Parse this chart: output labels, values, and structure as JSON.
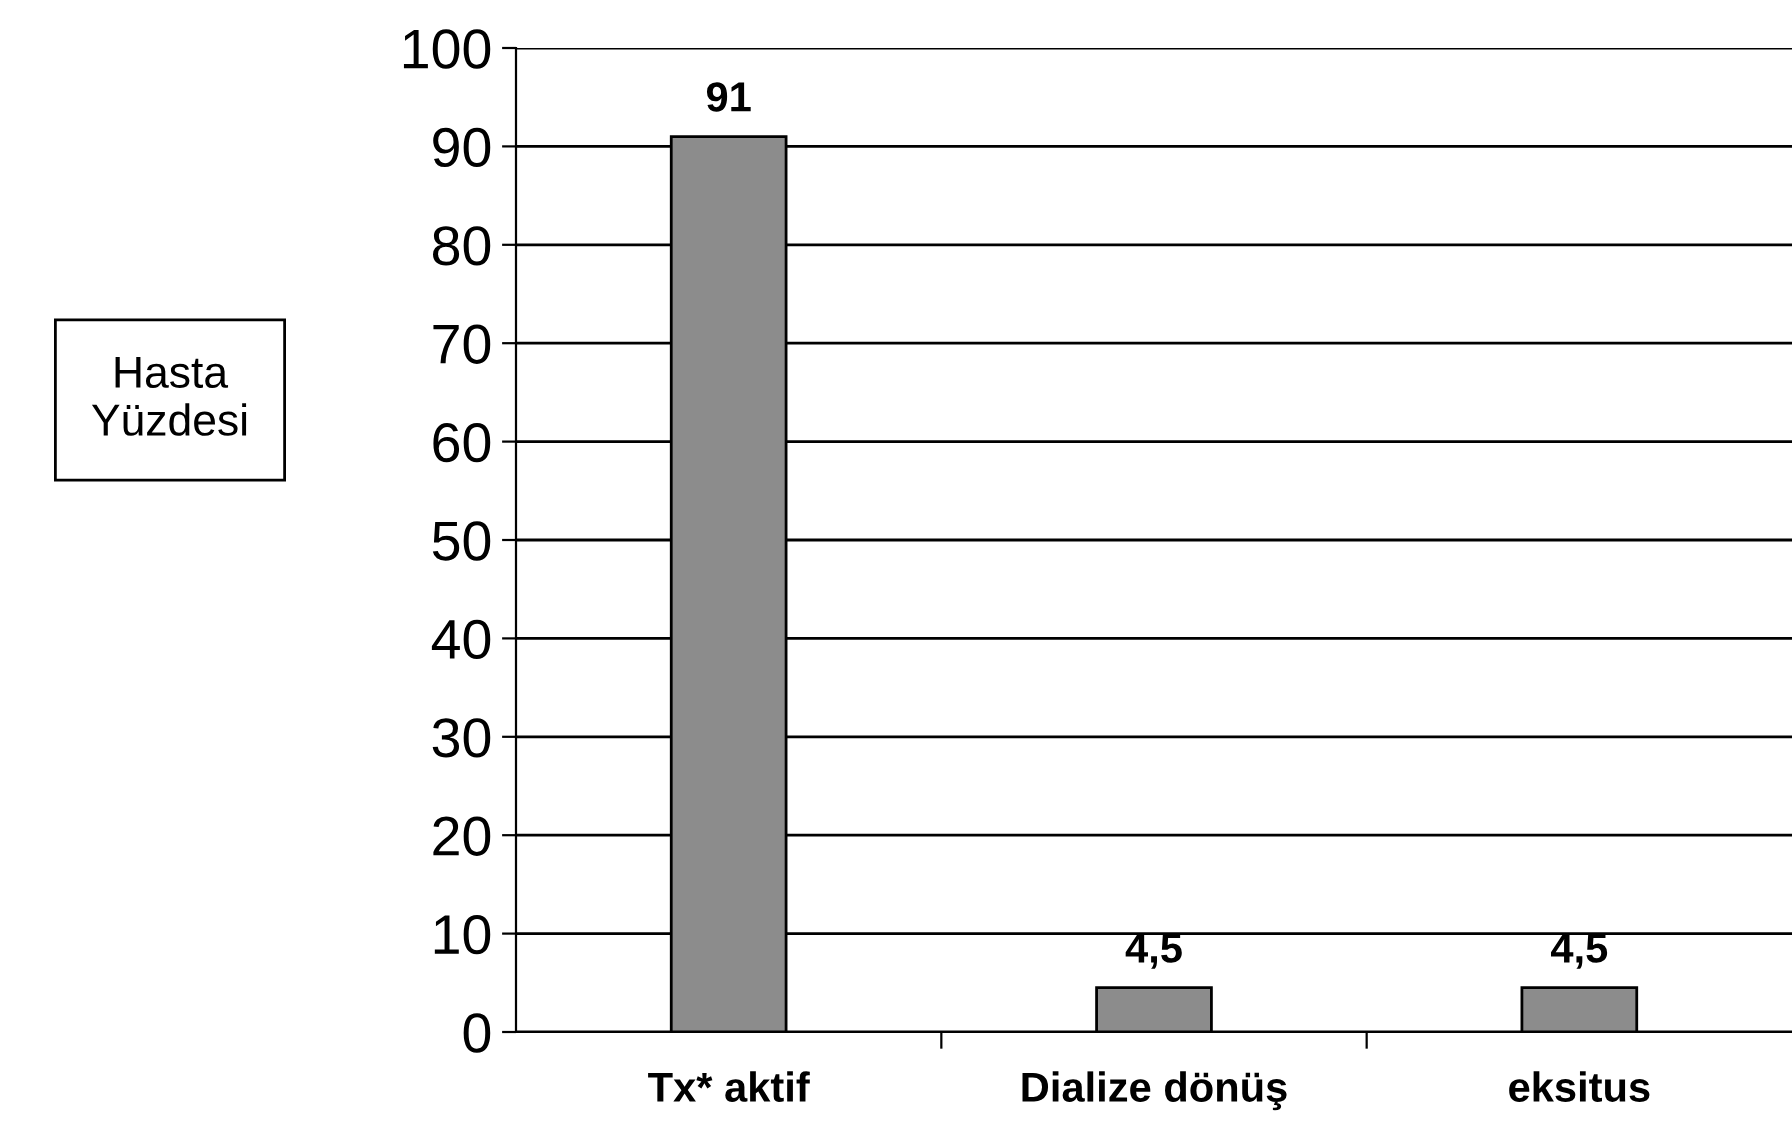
{
  "chart_data": {
    "type": "bar",
    "ylabel": "Hasta\nYüzdesi",
    "categories": [
      "Tx* aktif",
      "Dialize dönüş",
      "eksitus"
    ],
    "values": [
      91,
      4.5,
      4.5
    ],
    "color": "#8c8c8c",
    "value_labels": [
      "91",
      "4,5",
      "4,5"
    ],
    "ylim": [
      0,
      100
    ],
    "yticks": [
      0,
      10,
      20,
      30,
      40,
      50,
      60,
      70,
      80,
      90,
      100
    ],
    "grid": "y"
  }
}
